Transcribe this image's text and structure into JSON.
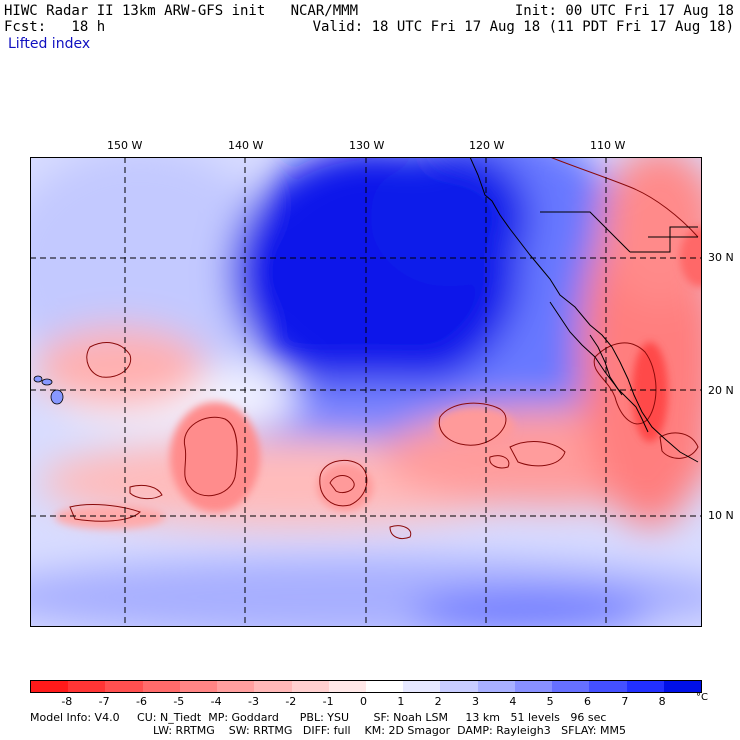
{
  "header": {
    "model_title": "HIWC Radar II 13km ARW-GFS init   NCAR/MMM",
    "init_time": "Init: 00 UTC Fri 17 Aug 18",
    "forecast": "Fcst:   18 h",
    "valid_time": "Valid: 18 UTC Fri 17 Aug 18 (11 PDT Fri 17 Aug 18)",
    "field_name": "Lifted index"
  },
  "map": {
    "lon_labels": [
      "150 W",
      "140 W",
      "130 W",
      "120 W",
      "110 W"
    ],
    "lat_labels": [
      "30 N",
      "20 N",
      "10 N"
    ]
  },
  "colorbar": {
    "labels": [
      "-8",
      "-7",
      "-6",
      "-5",
      "-4",
      "-3",
      "-2",
      "-1",
      "0",
      "1",
      "2",
      "3",
      "4",
      "5",
      "6",
      "7",
      "8"
    ],
    "unit": "°C",
    "colors": [
      "#ff1a1a",
      "#ff3535",
      "#ff5050",
      "#ff6b6b",
      "#ff8585",
      "#ff9f9f",
      "#ffb8b8",
      "#ffd0d0",
      "#ffe8e8",
      "#ffffff",
      "#e6e8ff",
      "#c8cdff",
      "#a8b0ff",
      "#8890ff",
      "#6670ff",
      "#4450ff",
      "#2230ff",
      "#0010e8"
    ]
  },
  "model_info": {
    "line1": "Model Info: V4.0     CU: N_Tiedt  MP: Goddard      PBL: YSU       SF: Noah LSM     13 km   51 levels   96 sec",
    "line2": "LW: RRTMG    SW: RRTMG   DIFF: full    KM: 2D Smagor  DAMP: Rayleigh3   SFLAY: MM5"
  }
}
